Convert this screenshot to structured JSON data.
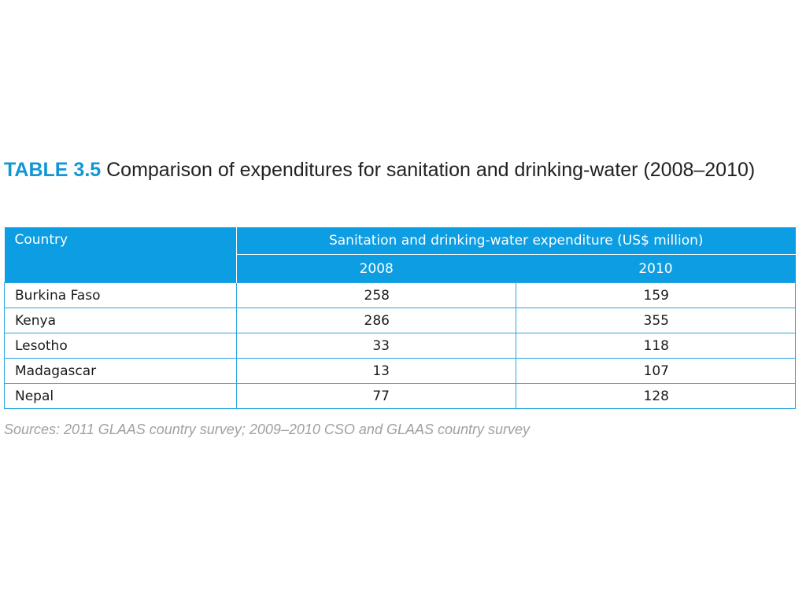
{
  "title": {
    "label": "TABLE 3.5",
    "text": "Comparison of expenditures for sanitation and drinking-water (2008–2010)"
  },
  "table": {
    "col_country": "Country",
    "col_group": "Sanitation and drinking-water expenditure (US$ million)",
    "years": [
      "2008",
      "2010"
    ],
    "rows": [
      {
        "country": "Burkina Faso",
        "v2008": "258",
        "v2010": "159"
      },
      {
        "country": "Kenya",
        "v2008": "286",
        "v2010": "355"
      },
      {
        "country": "Lesotho",
        "v2008": "33",
        "v2010": "118"
      },
      {
        "country": "Madagascar",
        "v2008": "13",
        "v2010": "107"
      },
      {
        "country": "Nepal",
        "v2008": "77",
        "v2010": "128"
      }
    ]
  },
  "sources": "Sources: 2011 GLAAS country survey; 2009–2010 CSO and GLAAS country survey",
  "colors": {
    "accent": "#0c9de2",
    "title_label": "#1296d4",
    "border": "#2aa6df",
    "sources_text": "#a0a0a0"
  }
}
